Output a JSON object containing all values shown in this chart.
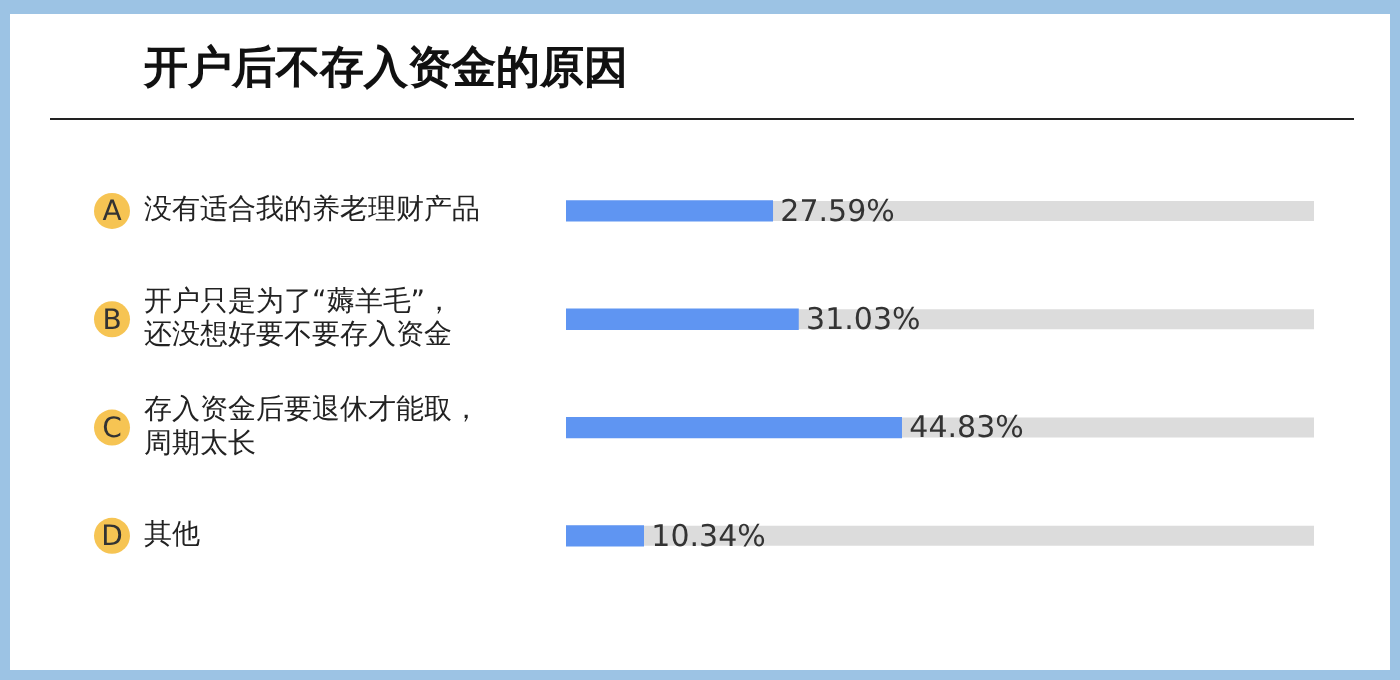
{
  "chart_data": {
    "type": "bar",
    "orientation": "horizontal",
    "title": "开户后不存入资金的原因",
    "categories": [
      "没有适合我的养老理财产品",
      "开户只是为了“薅羊毛”，还没想好要不要存入资金",
      "存入资金后要退休才能取，周期太长",
      "其他"
    ],
    "values": [
      27.59,
      31.03,
      44.83,
      10.34
    ],
    "value_labels": [
      "27.59%",
      "31.03%",
      "44.83%",
      "10.34%"
    ],
    "color": "#5f95f2",
    "xlim": [
      0,
      100
    ],
    "tick_labels": "y",
    "grid": false,
    "legend": false,
    "annotations": [
      "A",
      "B",
      "C",
      "D"
    ]
  }
}
